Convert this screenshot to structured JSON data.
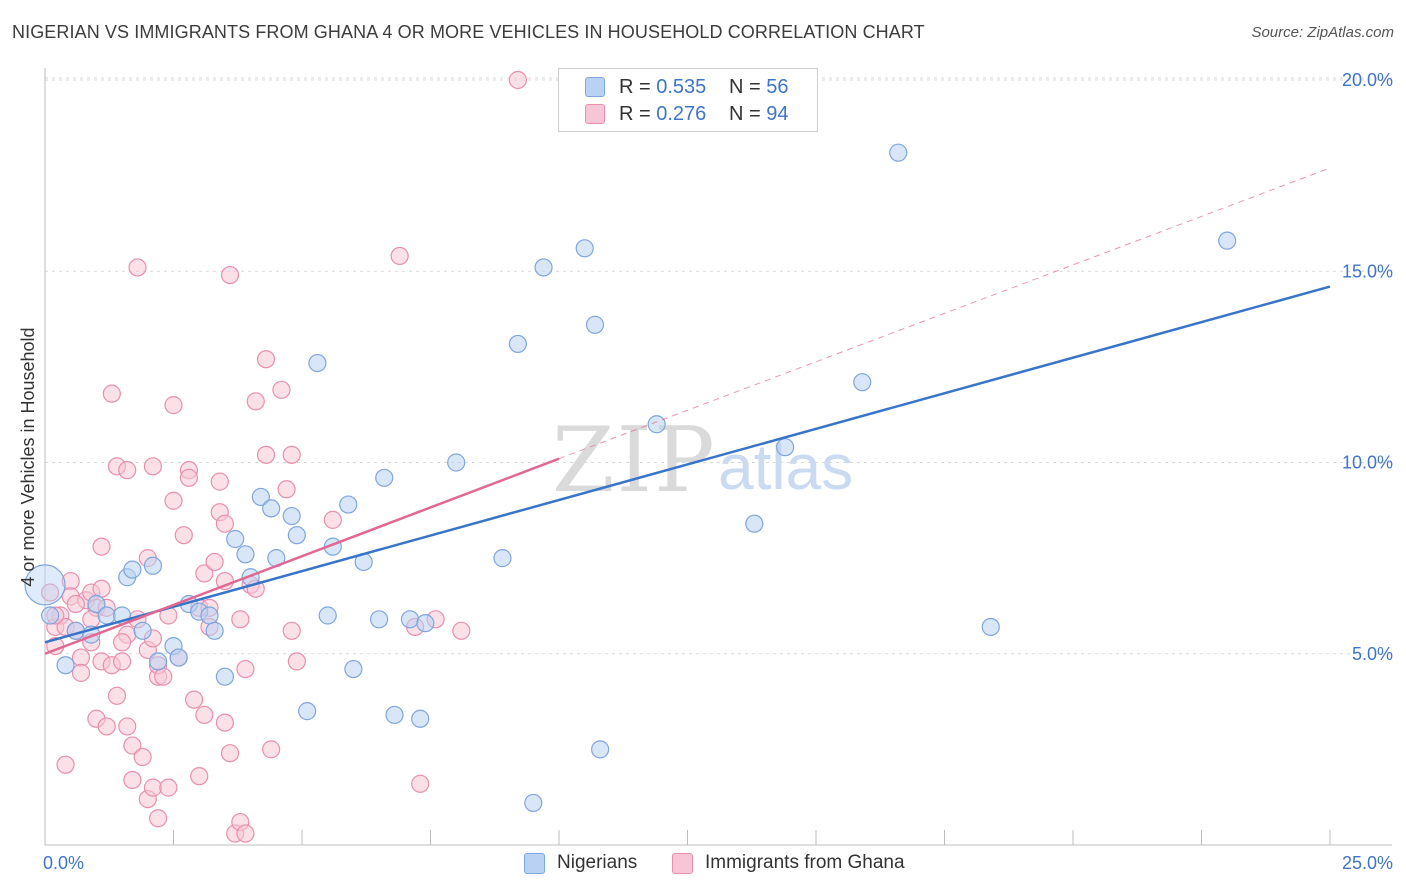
{
  "title": "NIGERIAN VS IMMIGRANTS FROM GHANA 4 OR MORE VEHICLES IN HOUSEHOLD CORRELATION CHART",
  "source": "Source: ZipAtlas.com",
  "watermark": {
    "zip": "ZIP",
    "atlas": "atlas"
  },
  "legend_top": {
    "rows": [
      {
        "r_label": "R =",
        "r_value": "0.535",
        "n_label": "N =",
        "n_value": "56"
      },
      {
        "r_label": "R =",
        "r_value": "0.276",
        "n_label": "N =",
        "n_value": "94"
      }
    ]
  },
  "legend_bottom": {
    "series1": "Nigerians",
    "series2": "Immigrants from Ghana"
  },
  "colors": {
    "nigerians_fill": "#b9d2f3",
    "nigerians_stroke": "#7fa6dd",
    "nigerians_line": "#3874c8",
    "ghana_fill": "#f7c6d6",
    "ghana_stroke": "#e88fae",
    "ghana_line": "#e06892",
    "accent": "#3f74c8"
  },
  "chart_data": {
    "type": "scatter",
    "title": "NIGERIAN VS IMMIGRANTS FROM GHANA 4 OR MORE VEHICLES IN HOUSEHOLD CORRELATION CHART",
    "xlabel": "",
    "ylabel": "4 or more Vehicles in Household",
    "xlim": [
      0,
      25
    ],
    "ylim": [
      0,
      20
    ],
    "x_tick_labels": [
      "0.0%",
      "25.0%"
    ],
    "y_ticks": [
      5,
      10,
      15,
      20
    ],
    "y_tick_labels": [
      "5.0%",
      "10.0%",
      "15.0%",
      "20.0%"
    ],
    "grid": true,
    "series": [
      {
        "name": "Nigerians",
        "r": 0.535,
        "n": 56,
        "trend": {
          "x0": 0,
          "y0": 5.3,
          "x1": 25,
          "y1": 14.6
        },
        "points": [
          [
            0.1,
            6.0
          ],
          [
            0.4,
            4.7
          ],
          [
            0.6,
            5.6
          ],
          [
            0.9,
            5.5
          ],
          [
            1.0,
            6.3
          ],
          [
            1.2,
            6.0
          ],
          [
            1.5,
            6.0
          ],
          [
            1.6,
            7.0
          ],
          [
            1.7,
            7.2
          ],
          [
            1.9,
            5.6
          ],
          [
            2.1,
            7.3
          ],
          [
            2.2,
            4.8
          ],
          [
            2.5,
            5.2
          ],
          [
            2.6,
            4.9
          ],
          [
            2.8,
            6.3
          ],
          [
            3.0,
            6.1
          ],
          [
            3.2,
            6.0
          ],
          [
            3.3,
            5.6
          ],
          [
            3.5,
            4.4
          ],
          [
            3.7,
            8.0
          ],
          [
            3.9,
            7.6
          ],
          [
            4.0,
            7.0
          ],
          [
            4.2,
            9.1
          ],
          [
            4.4,
            8.8
          ],
          [
            4.5,
            7.5
          ],
          [
            4.8,
            8.6
          ],
          [
            4.9,
            8.1
          ],
          [
            5.3,
            12.6
          ],
          [
            5.1,
            3.5
          ],
          [
            5.5,
            6.0
          ],
          [
            5.6,
            7.8
          ],
          [
            5.9,
            8.9
          ],
          [
            6.0,
            4.6
          ],
          [
            6.2,
            7.4
          ],
          [
            6.5,
            5.9
          ],
          [
            6.6,
            9.6
          ],
          [
            6.8,
            3.4
          ],
          [
            7.1,
            5.9
          ],
          [
            7.3,
            3.3
          ],
          [
            7.4,
            5.8
          ],
          [
            8.0,
            10.0
          ],
          [
            8.9,
            7.5
          ],
          [
            9.2,
            13.1
          ],
          [
            9.5,
            1.1
          ],
          [
            9.7,
            15.1
          ],
          [
            10.5,
            15.6
          ],
          [
            10.7,
            13.6
          ],
          [
            10.8,
            2.5
          ],
          [
            11.9,
            11.0
          ],
          [
            13.8,
            8.4
          ],
          [
            14.4,
            10.4
          ],
          [
            15.9,
            12.1
          ],
          [
            16.6,
            18.1
          ],
          [
            18.4,
            5.7
          ],
          [
            23.0,
            15.8
          ],
          [
            0.0,
            6.8
          ]
        ]
      },
      {
        "name": "Immigrants from Ghana",
        "r": 0.276,
        "n": 94,
        "trend": {
          "x0": 0,
          "y0": 5.0,
          "x1": 10,
          "y1": 10.1
        },
        "trend_extension": {
          "x0": 10,
          "y0": 10.1,
          "x1": 25,
          "y1": 17.7
        },
        "points": [
          [
            0.1,
            6.6
          ],
          [
            0.2,
            5.7
          ],
          [
            0.2,
            5.2
          ],
          [
            0.3,
            6.0
          ],
          [
            0.4,
            5.7
          ],
          [
            0.4,
            2.1
          ],
          [
            0.5,
            6.9
          ],
          [
            0.5,
            6.5
          ],
          [
            0.6,
            5.6
          ],
          [
            0.7,
            4.9
          ],
          [
            0.7,
            4.5
          ],
          [
            0.8,
            6.4
          ],
          [
            0.9,
            5.3
          ],
          [
            0.9,
            6.6
          ],
          [
            1.0,
            6.2
          ],
          [
            1.0,
            3.3
          ],
          [
            1.1,
            4.8
          ],
          [
            1.1,
            7.8
          ],
          [
            1.1,
            6.7
          ],
          [
            1.2,
            6.2
          ],
          [
            1.2,
            3.1
          ],
          [
            1.3,
            4.7
          ],
          [
            1.3,
            11.8
          ],
          [
            1.4,
            9.9
          ],
          [
            1.4,
            3.9
          ],
          [
            1.5,
            4.8
          ],
          [
            1.6,
            5.5
          ],
          [
            1.6,
            3.1
          ],
          [
            1.6,
            9.8
          ],
          [
            1.7,
            2.6
          ],
          [
            1.7,
            1.7
          ],
          [
            1.8,
            5.9
          ],
          [
            1.8,
            15.1
          ],
          [
            1.9,
            2.3
          ],
          [
            2.0,
            7.5
          ],
          [
            2.0,
            5.1
          ],
          [
            2.0,
            1.2
          ],
          [
            2.1,
            5.4
          ],
          [
            2.1,
            9.9
          ],
          [
            2.1,
            1.5
          ],
          [
            2.2,
            0.7
          ],
          [
            2.2,
            4.4
          ],
          [
            2.2,
            4.7
          ],
          [
            2.3,
            4.4
          ],
          [
            2.4,
            1.5
          ],
          [
            2.5,
            11.5
          ],
          [
            2.5,
            9.0
          ],
          [
            2.6,
            4.9
          ],
          [
            2.7,
            8.1
          ],
          [
            2.8,
            9.8
          ],
          [
            2.8,
            9.6
          ],
          [
            2.9,
            3.8
          ],
          [
            3.0,
            1.8
          ],
          [
            3.0,
            6.2
          ],
          [
            3.1,
            3.4
          ],
          [
            3.1,
            7.1
          ],
          [
            3.2,
            6.2
          ],
          [
            3.3,
            7.4
          ],
          [
            3.4,
            8.7
          ],
          [
            3.4,
            9.5
          ],
          [
            3.5,
            6.9
          ],
          [
            3.5,
            3.2
          ],
          [
            3.5,
            8.4
          ],
          [
            3.6,
            14.9
          ],
          [
            3.6,
            2.4
          ],
          [
            3.7,
            0.3
          ],
          [
            3.8,
            5.9
          ],
          [
            3.8,
            0.6
          ],
          [
            3.9,
            4.6
          ],
          [
            3.9,
            0.3
          ],
          [
            4.0,
            6.8
          ],
          [
            4.1,
            6.7
          ],
          [
            4.1,
            11.6
          ],
          [
            4.3,
            12.7
          ],
          [
            4.3,
            10.2
          ],
          [
            4.4,
            2.5
          ],
          [
            4.6,
            11.9
          ],
          [
            4.7,
            9.3
          ],
          [
            4.8,
            10.2
          ],
          [
            4.8,
            5.6
          ],
          [
            4.9,
            4.8
          ],
          [
            5.6,
            8.5
          ],
          [
            6.9,
            15.4
          ],
          [
            7.2,
            5.7
          ],
          [
            7.3,
            1.6
          ],
          [
            7.6,
            5.9
          ],
          [
            8.1,
            5.6
          ],
          [
            9.2,
            20.0
          ],
          [
            0.2,
            6.0
          ],
          [
            0.6,
            6.3
          ],
          [
            1.5,
            5.3
          ],
          [
            2.4,
            6.0
          ],
          [
            3.2,
            5.7
          ],
          [
            0.9,
            5.9
          ]
        ]
      }
    ]
  }
}
